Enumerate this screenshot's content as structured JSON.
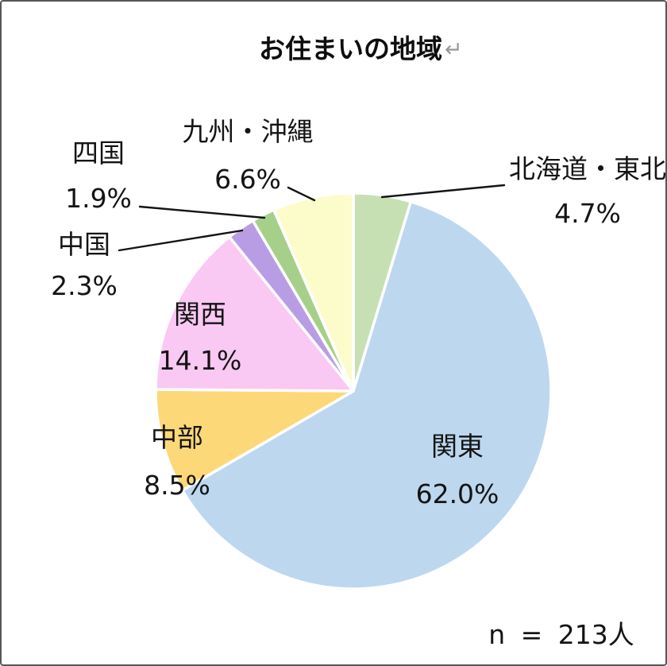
{
  "page": {
    "return_mark": "↵"
  },
  "chart_data": {
    "type": "pie",
    "title": "お住まいの地域",
    "sample_size_label": "n = 213人",
    "legend_position": "none",
    "start_angle_deg": 0,
    "direction": "clockwise",
    "slices": [
      {
        "key": "hokkaido-tohoku",
        "label": "北海道・東北",
        "value": 4.7,
        "pct_label": "4.7%",
        "color": "#c6e0b4",
        "label_placement": "outside"
      },
      {
        "key": "kanto",
        "label": "関東",
        "value": 62.0,
        "pct_label": "62.0%",
        "color": "#bdd7ee",
        "label_placement": "inside"
      },
      {
        "key": "chubu",
        "label": "中部",
        "value": 8.5,
        "pct_label": "8.5%",
        "color": "#fcd878",
        "label_placement": "inside"
      },
      {
        "key": "kansai",
        "label": "関西",
        "value": 14.1,
        "pct_label": "14.1%",
        "color": "#f9c8f3",
        "label_placement": "inside"
      },
      {
        "key": "chugoku",
        "label": "中国",
        "value": 2.3,
        "pct_label": "2.3%",
        "color": "#b99de4",
        "label_placement": "outside"
      },
      {
        "key": "shikoku",
        "label": "四国",
        "value": 1.9,
        "pct_label": "1.9%",
        "color": "#a6d08a",
        "label_placement": "outside"
      },
      {
        "key": "kyushu-okinawa",
        "label": "九州・沖縄",
        "value": 6.6,
        "pct_label": "6.6%",
        "color": "#fcfcca",
        "label_placement": "outside"
      }
    ]
  }
}
